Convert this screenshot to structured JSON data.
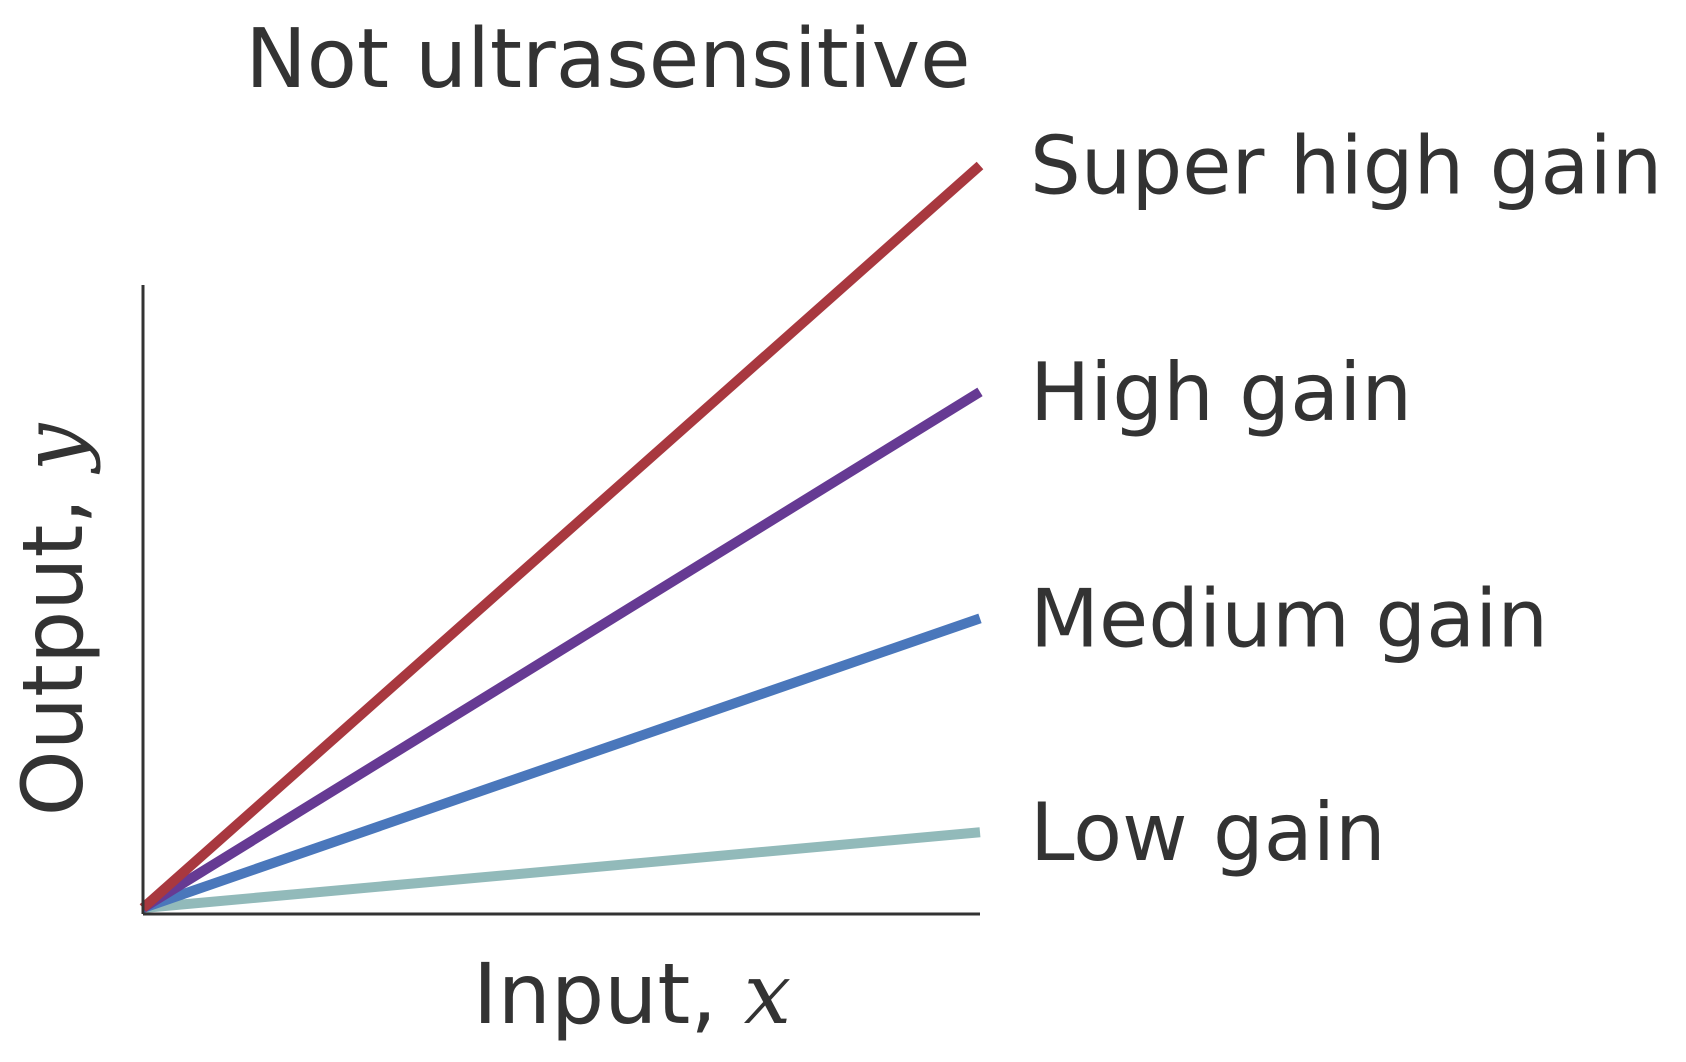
{
  "chart_data": {
    "type": "line",
    "title": "Not ultrasensitive",
    "xlabel": {
      "text": "Input, ",
      "var": "x"
    },
    "ylabel": {
      "text": "Output, ",
      "var": "y"
    },
    "xlim": [
      0,
      1
    ],
    "ylim": [
      0,
      1
    ],
    "grid": false,
    "legend": "right-of-lines",
    "series": [
      {
        "name": "Super high gain",
        "color": "#A8383F",
        "x": [
          0,
          1
        ],
        "y": [
          0,
          1.19
        ]
      },
      {
        "name": "High gain",
        "color": "#663A93",
        "x": [
          0,
          1
        ],
        "y": [
          0,
          0.83
        ]
      },
      {
        "name": "Medium gain",
        "color": "#4A77BB",
        "x": [
          0,
          1
        ],
        "y": [
          0,
          0.47
        ]
      },
      {
        "name": "Low gain",
        "color": "#92BABA",
        "x": [
          0,
          1
        ],
        "y": [
          0,
          0.13
        ]
      }
    ]
  }
}
